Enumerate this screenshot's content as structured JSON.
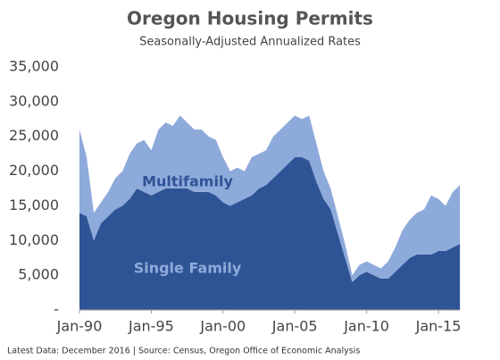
{
  "chart_data": {
    "type": "stacked_area",
    "title": "Oregon Housing Permits",
    "subtitle": "Seasonally-Adjusted Annualized Rates",
    "footnote": "Latest Data: December 2016  |  Source: Census, Oregon Office of Economic Analysis",
    "categories": [
      "Jan-90",
      null,
      null,
      null,
      null,
      null,
      null,
      null,
      null,
      null,
      "Jan-95",
      null,
      null,
      null,
      null,
      null,
      null,
      null,
      null,
      null,
      "Jan-00",
      null,
      null,
      null,
      null,
      null,
      null,
      null,
      null,
      null,
      "Jan-05",
      null,
      null,
      null,
      null,
      null,
      null,
      null,
      null,
      null,
      "Jan-10",
      null,
      null,
      null,
      null,
      null,
      null,
      null,
      null,
      null,
      "Jan-15",
      null,
      null,
      null
    ],
    "series": [
      {
        "name": "Single Family",
        "color": "#2f5496",
        "values": [
          14000,
          13500,
          10000,
          12500,
          13500,
          14500,
          15000,
          16000,
          17500,
          17000,
          16500,
          17000,
          17500,
          17500,
          17500,
          17500,
          17000,
          17000,
          17000,
          16500,
          15500,
          15000,
          15500,
          16000,
          16500,
          17500,
          18000,
          19000,
          20000,
          21000,
          22000,
          22000,
          21500,
          18500,
          16000,
          14500,
          11000,
          7500,
          4000,
          5000,
          5500,
          5000,
          4500,
          4500,
          5500,
          6500,
          7500,
          8000,
          8000,
          8000,
          8500,
          8500,
          9000,
          9500
        ]
      },
      {
        "name": "Multifamily",
        "color": "#8eaadb",
        "values": [
          12000,
          8500,
          4000,
          3000,
          3500,
          4500,
          5000,
          6500,
          6500,
          7500,
          6500,
          9000,
          9500,
          9000,
          10500,
          9500,
          9000,
          9000,
          8000,
          8000,
          6500,
          5000,
          5000,
          4000,
          5500,
          5000,
          5000,
          6000,
          6000,
          6000,
          6000,
          5500,
          6500,
          5500,
          4000,
          3000,
          2500,
          2000,
          1000,
          1500,
          1500,
          1500,
          1500,
          2500,
          3500,
          5000,
          5500,
          6000,
          6500,
          8500,
          7500,
          6500,
          8000,
          8500
        ]
      }
    ],
    "ylim": [
      0,
      35000
    ],
    "yticks": [
      {
        "value": 0,
        "label": "-"
      },
      {
        "value": 5000,
        "label": "5,000"
      },
      {
        "value": 10000,
        "label": "10,000"
      },
      {
        "value": 15000,
        "label": "15,000"
      },
      {
        "value": 20000,
        "label": "20,000"
      },
      {
        "value": 25000,
        "label": "25,000"
      },
      {
        "value": 30000,
        "label": "30,000"
      },
      {
        "value": 35000,
        "label": "35,000"
      }
    ],
    "grid": false
  }
}
